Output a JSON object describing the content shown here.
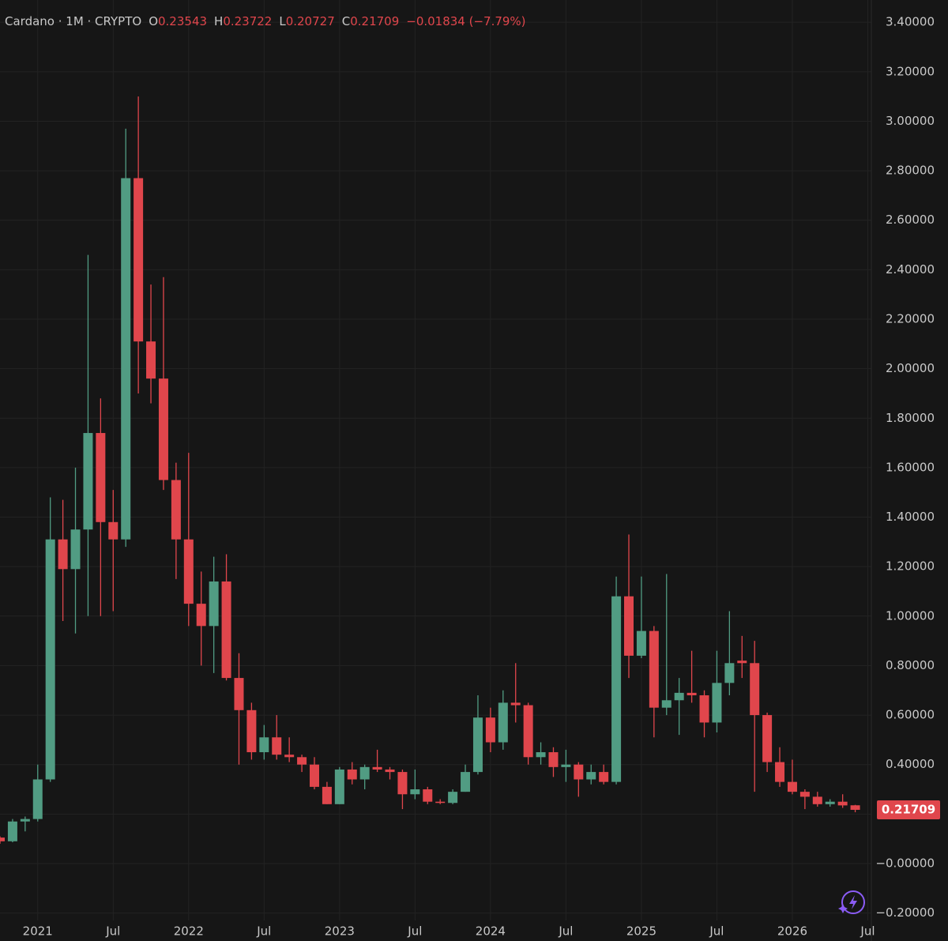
{
  "chart_data": {
    "type": "candlestick",
    "title": "Cardano · 1M · CRYPTO",
    "header_labels": [
      "O",
      "H",
      "L",
      "C"
    ],
    "change_label": "−0.01834 (−7.79%)",
    "x": [
      "2020-10",
      "2020-11",
      "2020-12",
      "2021-01",
      "2021-02",
      "2021-03",
      "2021-04",
      "2021-05",
      "2021-06",
      "2021-07",
      "2021-08",
      "2021-09",
      "2021-10",
      "2021-11",
      "2021-12",
      "2022-01",
      "2022-02",
      "2022-03",
      "2022-04",
      "2022-05",
      "2022-06",
      "2022-07",
      "2022-08",
      "2022-09",
      "2022-10",
      "2022-11",
      "2022-12",
      "2023-01",
      "2023-02",
      "2023-03",
      "2023-04",
      "2023-05",
      "2023-06",
      "2023-07",
      "2023-08",
      "2023-09",
      "2023-10",
      "2023-11",
      "2023-12",
      "2024-01",
      "2024-02",
      "2024-03",
      "2024-04",
      "2024-05",
      "2024-06",
      "2024-07",
      "2024-08",
      "2024-09",
      "2024-10",
      "2024-11",
      "2024-12",
      "2025-01",
      "2025-02",
      "2025-03",
      "2025-04",
      "2025-05",
      "2025-06",
      "2025-07",
      "2025-08",
      "2025-09",
      "2025-10",
      "2025-11",
      "2025-12",
      "2026-01",
      "2026-02",
      "2026-03",
      "2026-04",
      "2026-05",
      "2026-06"
    ],
    "open": [
      0.105,
      0.09,
      0.17,
      0.18,
      0.34,
      1.31,
      1.19,
      1.35,
      1.74,
      1.38,
      1.31,
      2.77,
      2.11,
      1.96,
      1.55,
      1.31,
      1.05,
      0.96,
      1.14,
      0.75,
      0.62,
      0.45,
      0.51,
      0.44,
      0.43,
      0.4,
      0.31,
      0.24,
      0.38,
      0.34,
      0.39,
      0.38,
      0.37,
      0.28,
      0.3,
      0.25,
      0.245,
      0.29,
      0.37,
      0.59,
      0.49,
      0.65,
      0.64,
      0.43,
      0.45,
      0.39,
      0.4,
      0.34,
      0.37,
      0.33,
      1.08,
      0.84,
      0.94,
      0.63,
      0.66,
      0.69,
      0.68,
      0.57,
      0.73,
      0.82,
      0.81,
      0.6,
      0.41,
      0.33,
      0.29,
      0.27,
      0.24,
      0.25,
      0.23543
    ],
    "high": [
      0.11,
      0.18,
      0.19,
      0.4,
      1.48,
      1.47,
      1.6,
      2.46,
      1.88,
      1.51,
      2.97,
      3.1,
      2.34,
      2.37,
      1.62,
      1.66,
      1.18,
      1.24,
      1.25,
      0.85,
      0.65,
      0.56,
      0.6,
      0.51,
      0.44,
      0.43,
      0.33,
      0.39,
      0.41,
      0.4,
      0.46,
      0.39,
      0.38,
      0.38,
      0.31,
      0.26,
      0.3,
      0.4,
      0.68,
      0.63,
      0.7,
      0.81,
      0.65,
      0.49,
      0.47,
      0.46,
      0.41,
      0.4,
      0.4,
      1.16,
      1.33,
      1.16,
      0.96,
      1.17,
      0.75,
      0.86,
      0.7,
      0.86,
      1.02,
      0.92,
      0.9,
      0.61,
      0.47,
      0.42,
      0.3,
      0.29,
      0.26,
      0.28,
      0.23722
    ],
    "low": [
      0.08,
      0.086,
      0.13,
      0.17,
      0.33,
      0.98,
      0.93,
      1.0,
      1.0,
      1.02,
      1.28,
      1.9,
      1.86,
      1.51,
      1.15,
      0.96,
      0.8,
      0.77,
      0.74,
      0.4,
      0.42,
      0.42,
      0.42,
      0.41,
      0.37,
      0.3,
      0.24,
      0.24,
      0.32,
      0.3,
      0.37,
      0.34,
      0.22,
      0.26,
      0.24,
      0.24,
      0.24,
      0.29,
      0.36,
      0.45,
      0.46,
      0.57,
      0.4,
      0.4,
      0.35,
      0.33,
      0.27,
      0.32,
      0.32,
      0.32,
      0.75,
      0.83,
      0.51,
      0.6,
      0.52,
      0.65,
      0.51,
      0.53,
      0.68,
      0.75,
      0.29,
      0.37,
      0.31,
      0.28,
      0.22,
      0.23,
      0.23,
      0.225,
      0.20727
    ],
    "close": [
      0.09,
      0.17,
      0.18,
      0.34,
      1.31,
      1.19,
      1.35,
      1.74,
      1.38,
      1.31,
      2.77,
      2.11,
      1.96,
      1.55,
      1.31,
      1.05,
      0.96,
      1.14,
      0.75,
      0.62,
      0.45,
      0.51,
      0.44,
      0.43,
      0.4,
      0.31,
      0.24,
      0.38,
      0.34,
      0.39,
      0.38,
      0.37,
      0.28,
      0.3,
      0.25,
      0.245,
      0.29,
      0.37,
      0.59,
      0.49,
      0.65,
      0.64,
      0.43,
      0.45,
      0.39,
      0.4,
      0.34,
      0.37,
      0.33,
      1.08,
      0.84,
      0.94,
      0.63,
      0.66,
      0.69,
      0.68,
      0.57,
      0.73,
      0.81,
      0.81,
      0.6,
      0.41,
      0.33,
      0.29,
      0.27,
      0.24,
      0.25,
      0.235,
      0.21709
    ],
    "up_color": "#519c83",
    "down_color": "#e0464c",
    "ylim": [
      -0.23,
      3.49
    ],
    "yticks": [
      {
        "value": -0.2,
        "label": "−0.20000"
      },
      {
        "value": 0,
        "label": "−0.00000"
      },
      {
        "value": 0.2,
        "label": "0.20000"
      },
      {
        "value": 0.4,
        "label": "0.40000"
      },
      {
        "value": 0.6,
        "label": "0.60000"
      },
      {
        "value": 0.8,
        "label": "0.80000"
      },
      {
        "value": 1,
        "label": "1.00000"
      },
      {
        "value": 1.2,
        "label": "1.20000"
      },
      {
        "value": 1.4,
        "label": "1.40000"
      },
      {
        "value": 1.6,
        "label": "1.60000"
      },
      {
        "value": 1.8,
        "label": "1.80000"
      },
      {
        "value": 2,
        "label": "2.00000"
      },
      {
        "value": 2.2,
        "label": "2.20000"
      },
      {
        "value": 2.4,
        "label": "2.40000"
      },
      {
        "value": 2.6,
        "label": "2.60000"
      },
      {
        "value": 2.8,
        "label": "2.80000"
      },
      {
        "value": 3,
        "label": "3.00000"
      },
      {
        "value": 3.2,
        "label": "3.20000"
      },
      {
        "value": 3.4,
        "label": "3.40000"
      }
    ],
    "xticks": [
      {
        "value": "2021-01",
        "label": "2021"
      },
      {
        "value": "2021-07",
        "label": "Jul"
      },
      {
        "value": "2022-01",
        "label": "2022"
      },
      {
        "value": "2022-07",
        "label": "Jul"
      },
      {
        "value": "2023-01",
        "label": "2023"
      },
      {
        "value": "2023-07",
        "label": "Jul"
      },
      {
        "value": "2024-01",
        "label": "2024"
      },
      {
        "value": "2024-07",
        "label": "Jul"
      },
      {
        "value": "2025-01",
        "label": "2025"
      },
      {
        "value": "2025-07",
        "label": "Jul"
      },
      {
        "value": "2026-01",
        "label": "2026"
      },
      {
        "value": "2026-07",
        "label": "Jul"
      }
    ],
    "grid": true
  }
}
